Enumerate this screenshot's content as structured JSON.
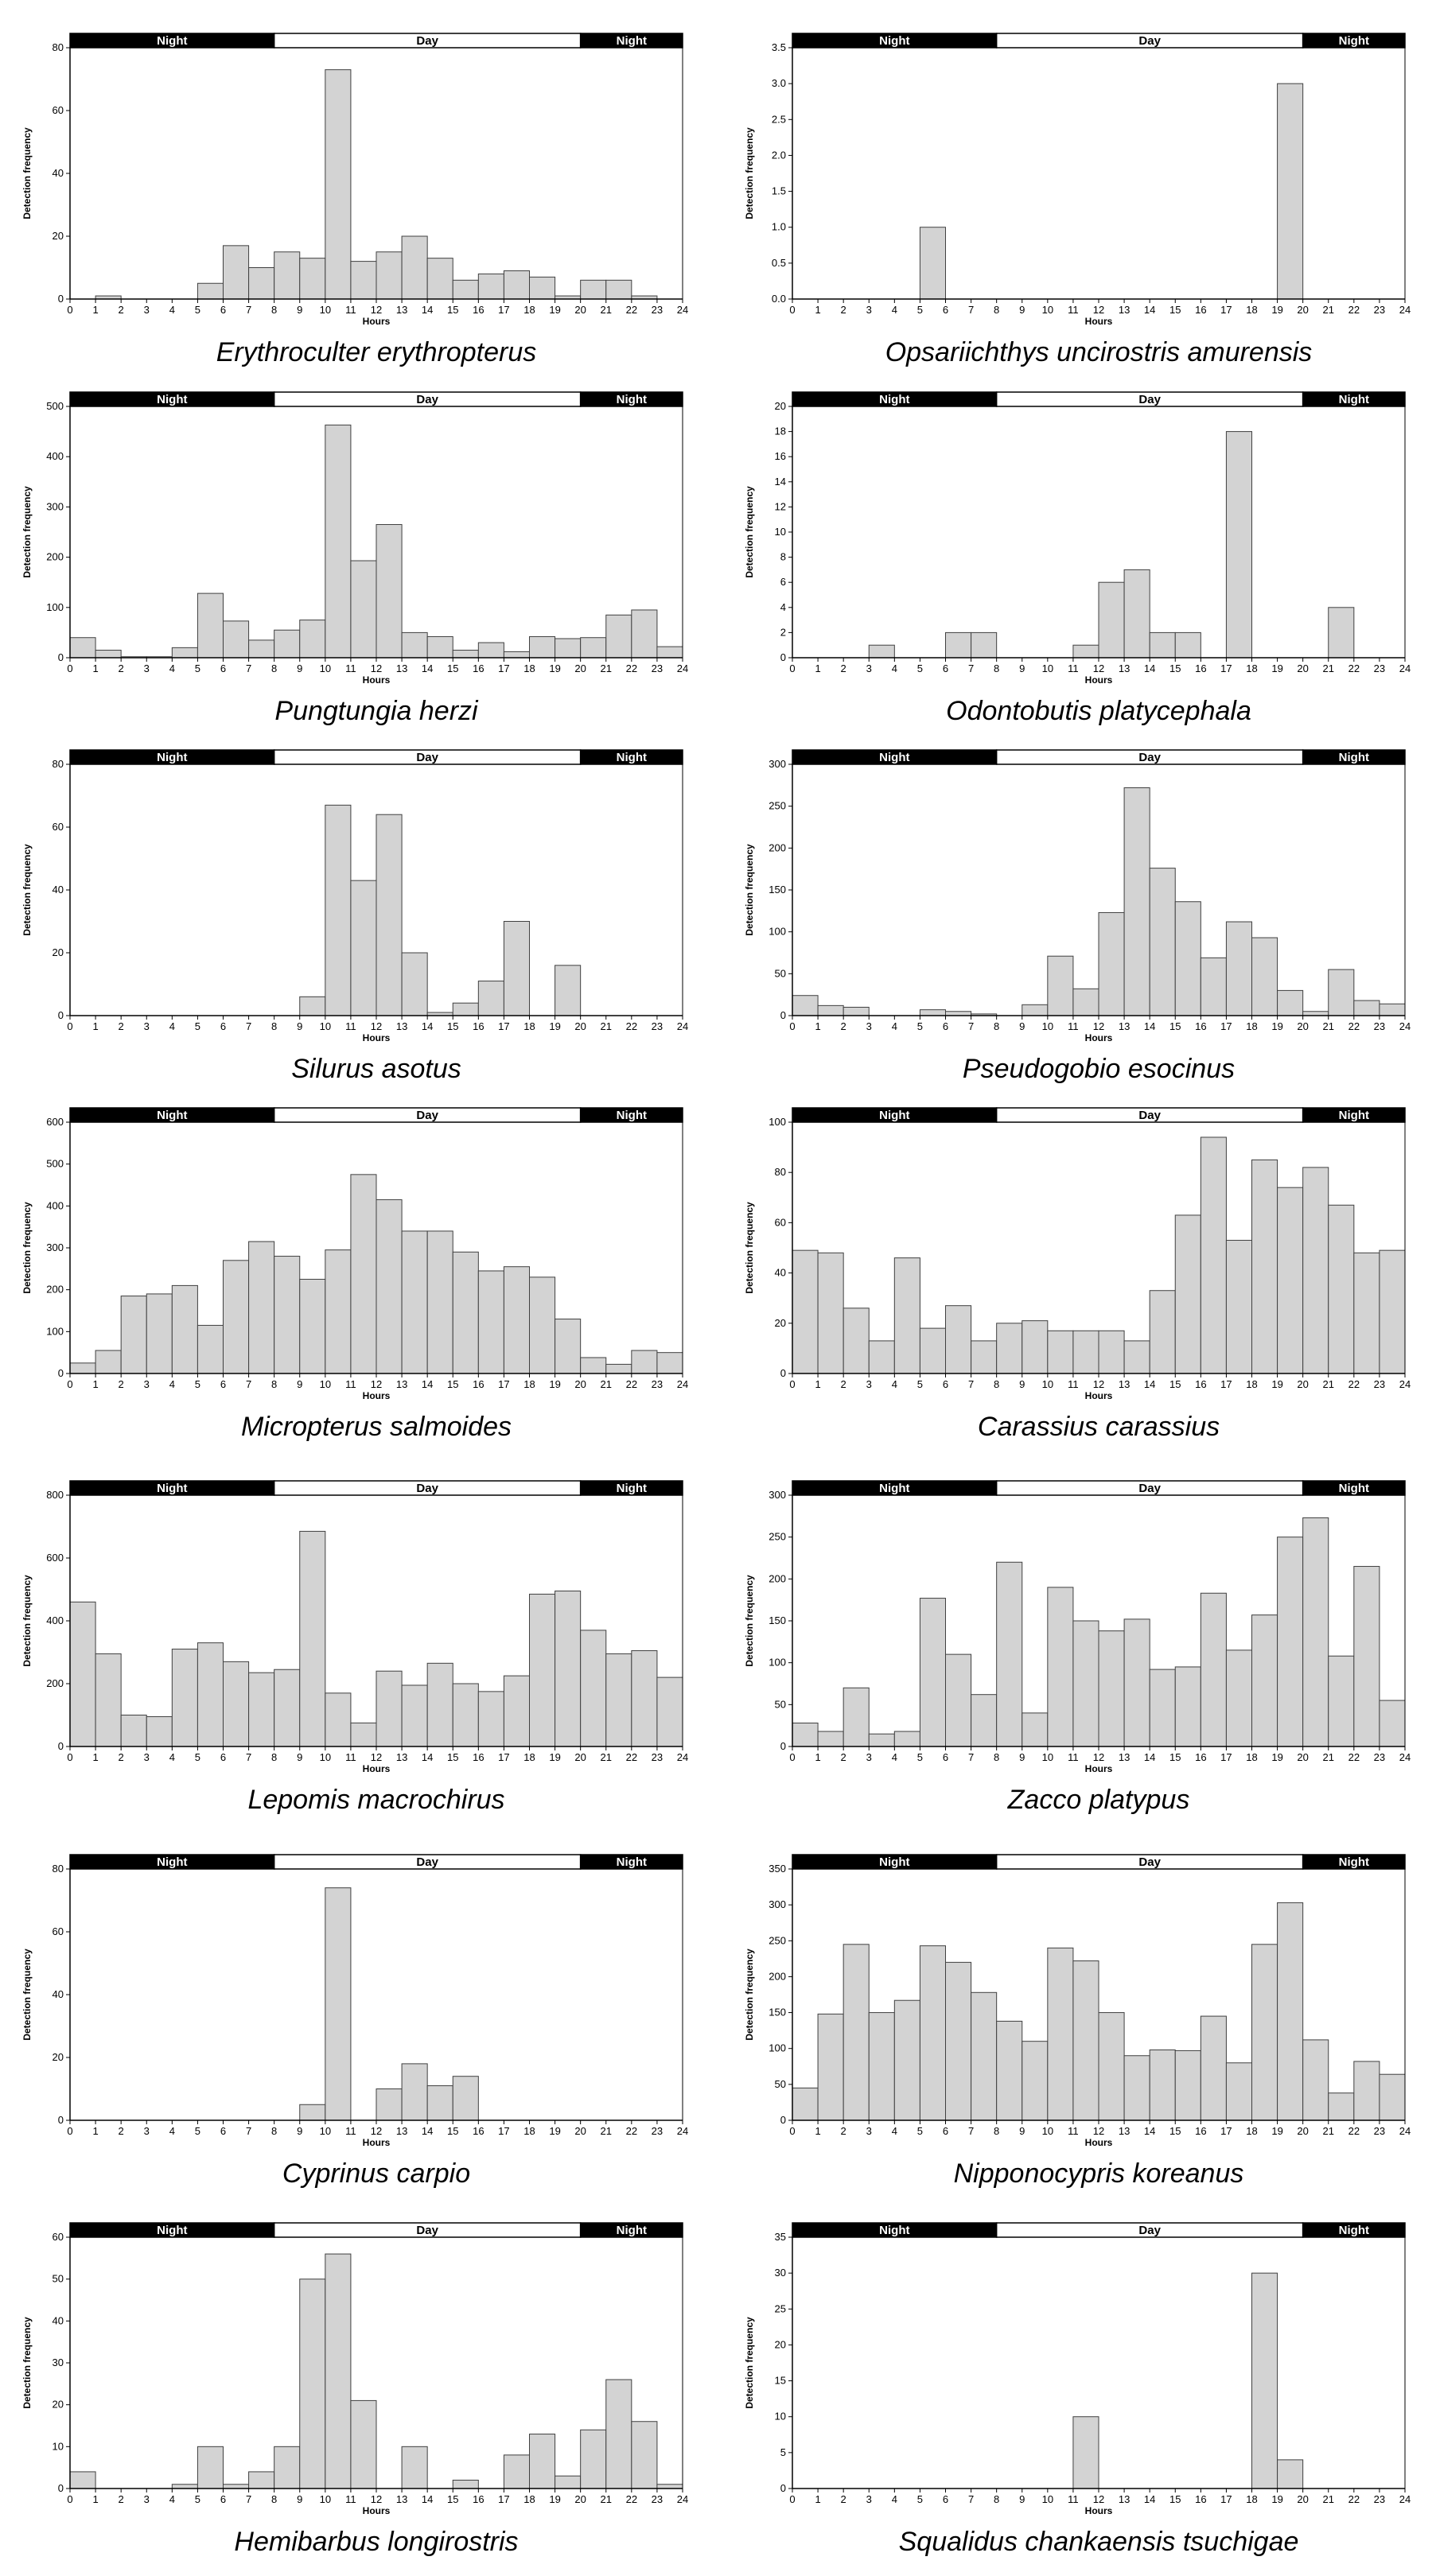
{
  "figure": {
    "xlabel": "Hours",
    "ylabel": "Detection frequency",
    "x_ticks": [
      "0",
      "1",
      "2",
      "3",
      "4",
      "5",
      "6",
      "7",
      "8",
      "9",
      "10",
      "11",
      "12",
      "13",
      "14",
      "15",
      "16",
      "17",
      "18",
      "19",
      "20",
      "21",
      "22",
      "23",
      "24"
    ],
    "band": [
      {
        "label": "Night",
        "from": 0,
        "to": 8,
        "fill": "#000000",
        "text_color": "#ffffff"
      },
      {
        "label": "Day",
        "from": 8,
        "to": 20,
        "fill": "#ffffff",
        "text_color": "#000000"
      },
      {
        "label": "Night",
        "from": 20,
        "to": 24,
        "fill": "#000000",
        "text_color": "#ffffff"
      }
    ],
    "colors": {
      "bar_fill": "#d3d3d3",
      "bar_stroke": "#404040",
      "axis": "#000000"
    }
  },
  "chart_data": [
    {
      "type": "bar",
      "title": "Erythroculter  erythropterus",
      "xlabel": "Hours",
      "ylabel": "Detection frequency",
      "ylim": [
        0,
        80
      ],
      "yticks": [
        0,
        20,
        40,
        60,
        80
      ],
      "ytick_labels": [
        "0",
        "20",
        "40",
        "60",
        "80"
      ],
      "values": [
        0,
        1,
        0,
        0,
        0,
        5,
        17,
        10,
        15,
        13,
        73,
        12,
        15,
        20,
        13,
        6,
        8,
        9,
        7,
        1,
        6,
        6,
        1,
        0
      ]
    },
    {
      "type": "bar",
      "title": "Opsariichthys  uncirostris  amurensis",
      "xlabel": "Hours",
      "ylabel": "Detection frequency",
      "ylim": [
        0,
        3.5
      ],
      "yticks": [
        0,
        0.5,
        1,
        1.5,
        2,
        2.5,
        3,
        3.5
      ],
      "ytick_labels": [
        "0.0",
        "0.5",
        "1.0",
        "1.5",
        "2.0",
        "2.5",
        "3.0",
        "3.5"
      ],
      "values": [
        0,
        0,
        0,
        0,
        0,
        1,
        0,
        0,
        0,
        0,
        0,
        0,
        0,
        0,
        0,
        0,
        0,
        0,
        0,
        3,
        0,
        0,
        0,
        0
      ]
    },
    {
      "type": "bar",
      "title": "Pungtungia  herzi",
      "xlabel": "Hours",
      "ylabel": "Detection frequency",
      "ylim": [
        0,
        500
      ],
      "yticks": [
        0,
        100,
        200,
        300,
        400,
        500
      ],
      "ytick_labels": [
        "0",
        "100",
        "200",
        "300",
        "400",
        "500"
      ],
      "values": [
        40,
        15,
        2,
        2,
        20,
        128,
        73,
        35,
        55,
        75,
        463,
        193,
        265,
        50,
        42,
        15,
        30,
        12,
        42,
        38,
        40,
        85,
        95,
        22
      ]
    },
    {
      "type": "bar",
      "title": "Odontobutis  platycephala",
      "xlabel": "Hours",
      "ylabel": "Detection frequency",
      "ylim": [
        0,
        20
      ],
      "yticks": [
        0,
        2,
        4,
        6,
        8,
        10,
        12,
        14,
        16,
        18,
        20
      ],
      "ytick_labels": [
        "0",
        "2",
        "4",
        "6",
        "8",
        "10",
        "12",
        "14",
        "16",
        "18",
        "20"
      ],
      "values": [
        0,
        0,
        0,
        1,
        0,
        0,
        2,
        2,
        0,
        0,
        0,
        1,
        6,
        7,
        2,
        2,
        0,
        18,
        0,
        0,
        0,
        4,
        0,
        0
      ]
    },
    {
      "type": "bar",
      "title": "Silurus  asotus",
      "xlabel": "Hours",
      "ylabel": "Detection frequency",
      "ylim": [
        0,
        80
      ],
      "yticks": [
        0,
        20,
        40,
        60,
        80
      ],
      "ytick_labels": [
        "0",
        "20",
        "40",
        "60",
        "80"
      ],
      "values": [
        0,
        0,
        0,
        0,
        0,
        0,
        0,
        0,
        0,
        6,
        67,
        43,
        64,
        20,
        1,
        4,
        11,
        30,
        0,
        16,
        0,
        0,
        0,
        0
      ]
    },
    {
      "type": "bar",
      "title": "Pseudogobio  esocinus",
      "xlabel": "Hours",
      "ylabel": "Detection frequency",
      "ylim": [
        0,
        300
      ],
      "yticks": [
        0,
        50,
        100,
        150,
        200,
        250,
        300
      ],
      "ytick_labels": [
        "0",
        "50",
        "100",
        "150",
        "200",
        "250",
        "300"
      ],
      "values": [
        24,
        12,
        10,
        0,
        0,
        7,
        5,
        2,
        0,
        13,
        71,
        32,
        123,
        272,
        176,
        136,
        69,
        112,
        93,
        30,
        5,
        55,
        18,
        14
      ]
    },
    {
      "type": "bar",
      "title": "Micropterus  salmoides",
      "xlabel": "Hours",
      "ylabel": "Detection frequency",
      "ylim": [
        0,
        600
      ],
      "yticks": [
        0,
        100,
        200,
        300,
        400,
        500,
        600
      ],
      "ytick_labels": [
        "0",
        "100",
        "200",
        "300",
        "400",
        "500",
        "600"
      ],
      "values": [
        25,
        55,
        185,
        190,
        210,
        115,
        270,
        315,
        280,
        225,
        295,
        475,
        415,
        340,
        340,
        290,
        245,
        255,
        230,
        130,
        38,
        22,
        55,
        50
      ]
    },
    {
      "type": "bar",
      "title": "Carassius  carassius",
      "xlabel": "Hours",
      "ylabel": "Detection frequency",
      "ylim": [
        0,
        100
      ],
      "yticks": [
        0,
        20,
        40,
        60,
        80,
        100
      ],
      "ytick_labels": [
        "0",
        "20",
        "40",
        "60",
        "80",
        "100"
      ],
      "values": [
        49,
        48,
        26,
        13,
        46,
        18,
        27,
        13,
        20,
        21,
        17,
        17,
        17,
        13,
        33,
        63,
        94,
        53,
        85,
        74,
        82,
        67,
        48,
        49
      ]
    },
    {
      "type": "bar",
      "title": "Lepomis  macrochirus",
      "xlabel": "Hours",
      "ylabel": "Detection frequency",
      "ylim": [
        0,
        800
      ],
      "yticks": [
        0,
        200,
        400,
        600,
        800
      ],
      "ytick_labels": [
        "0",
        "200",
        "400",
        "600",
        "800"
      ],
      "values": [
        460,
        295,
        100,
        95,
        310,
        330,
        270,
        235,
        245,
        685,
        170,
        75,
        240,
        195,
        265,
        200,
        175,
        225,
        485,
        495,
        370,
        295,
        305,
        220
      ]
    },
    {
      "type": "bar",
      "title": "Zacco  platypus",
      "xlabel": "Hours",
      "ylabel": "Detection frequency",
      "ylim": [
        0,
        300
      ],
      "yticks": [
        0,
        50,
        100,
        150,
        200,
        250,
        300
      ],
      "ytick_labels": [
        "0",
        "50",
        "100",
        "150",
        "200",
        "250",
        "300"
      ],
      "values": [
        28,
        18,
        70,
        15,
        18,
        177,
        110,
        62,
        220,
        40,
        190,
        150,
        138,
        152,
        92,
        95,
        183,
        115,
        157,
        250,
        273,
        108,
        215,
        55
      ]
    },
    {
      "type": "bar",
      "title": "Cyprinus  carpio",
      "xlabel": "Hours",
      "ylabel": "Detection frequency",
      "ylim": [
        0,
        80
      ],
      "yticks": [
        0,
        20,
        40,
        60,
        80
      ],
      "ytick_labels": [
        "0",
        "20",
        "40",
        "60",
        "80"
      ],
      "values": [
        0,
        0,
        0,
        0,
        0,
        0,
        0,
        0,
        0,
        5,
        74,
        0,
        10,
        18,
        11,
        14,
        0,
        0,
        0,
        0,
        0,
        0,
        0,
        0
      ]
    },
    {
      "type": "bar",
      "title": "Nipponocypris  koreanus",
      "xlabel": "Hours",
      "ylabel": "Detection frequency",
      "ylim": [
        0,
        350
      ],
      "yticks": [
        0,
        50,
        100,
        150,
        200,
        250,
        300,
        350
      ],
      "ytick_labels": [
        "0",
        "50",
        "100",
        "150",
        "200",
        "250",
        "300",
        "350"
      ],
      "values": [
        45,
        148,
        245,
        150,
        167,
        243,
        220,
        178,
        138,
        110,
        240,
        222,
        150,
        90,
        98,
        97,
        145,
        80,
        245,
        303,
        112,
        38,
        82,
        64
      ]
    },
    {
      "type": "bar",
      "title": "Hemibarbus  longirostris",
      "xlabel": "Hours",
      "ylabel": "Detection frequency",
      "ylim": [
        0,
        60
      ],
      "yticks": [
        0,
        10,
        20,
        30,
        40,
        50,
        60
      ],
      "ytick_labels": [
        "0",
        "10",
        "20",
        "30",
        "40",
        "50",
        "60"
      ],
      "values": [
        4,
        0,
        0,
        0,
        1,
        10,
        1,
        4,
        10,
        50,
        56,
        21,
        0,
        10,
        0,
        2,
        0,
        8,
        13,
        3,
        14,
        26,
        16,
        1
      ]
    },
    {
      "type": "bar",
      "title": "Squalidus  chankaensis  tsuchigae",
      "xlabel": "Hours",
      "ylabel": "Detection frequency",
      "ylim": [
        0,
        35
      ],
      "yticks": [
        0,
        5,
        10,
        15,
        20,
        25,
        30,
        35
      ],
      "ytick_labels": [
        "0",
        "5",
        "10",
        "15",
        "20",
        "25",
        "30",
        "35"
      ],
      "values": [
        0,
        0,
        0,
        0,
        0,
        0,
        0,
        0,
        0,
        0,
        0,
        10,
        0,
        0,
        0,
        0,
        0,
        0,
        30,
        4,
        0,
        0,
        0,
        0
      ]
    }
  ]
}
